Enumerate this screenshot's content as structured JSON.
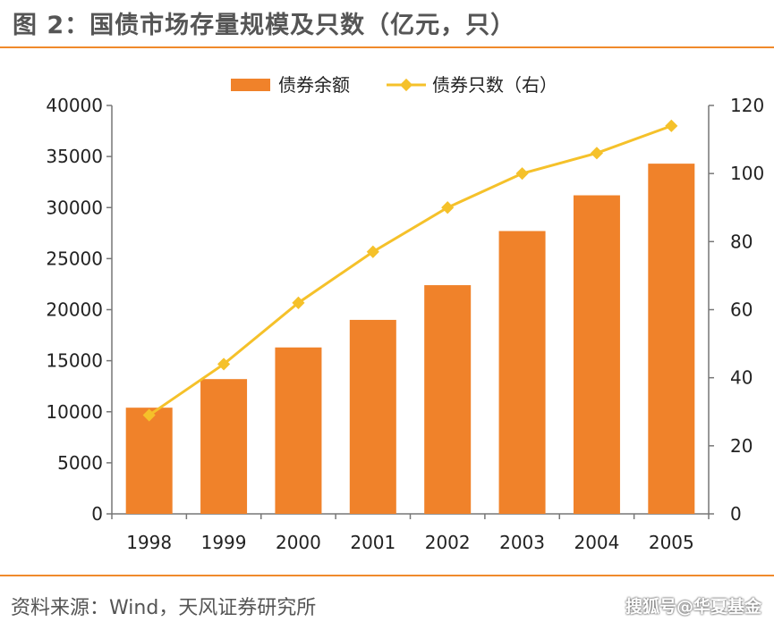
{
  "title": "图 2：国债市场存量规模及只数（亿元，只）",
  "source": "资料来源：Wind，天风证券研究所",
  "watermark": "搜狐号@华夏基金",
  "colors": {
    "bar": "#f0822a",
    "line": "#f5c12a",
    "rule": "#f08a2c"
  },
  "chart_data": {
    "type": "bar",
    "categories": [
      "1998",
      "1999",
      "2000",
      "2001",
      "2002",
      "2003",
      "2004",
      "2005"
    ],
    "series": [
      {
        "name": "债券余额",
        "type": "bar",
        "axis": "left",
        "values": [
          10400,
          13200,
          16300,
          19000,
          22400,
          27700,
          31200,
          34300
        ]
      },
      {
        "name": "债券只数（右）",
        "type": "line",
        "axis": "right",
        "values": [
          29,
          44,
          62,
          77,
          90,
          100,
          106,
          114
        ]
      }
    ],
    "y_left": {
      "min": 0,
      "max": 40000,
      "ticks": [
        "0",
        "5000",
        "10000",
        "15000",
        "20000",
        "25000",
        "30000",
        "35000",
        "40000"
      ]
    },
    "y_right": {
      "min": 0,
      "max": 120,
      "ticks": [
        "0",
        "20",
        "40",
        "60",
        "80",
        "100",
        "120"
      ]
    },
    "legend_position": "top-center",
    "grid": false
  }
}
